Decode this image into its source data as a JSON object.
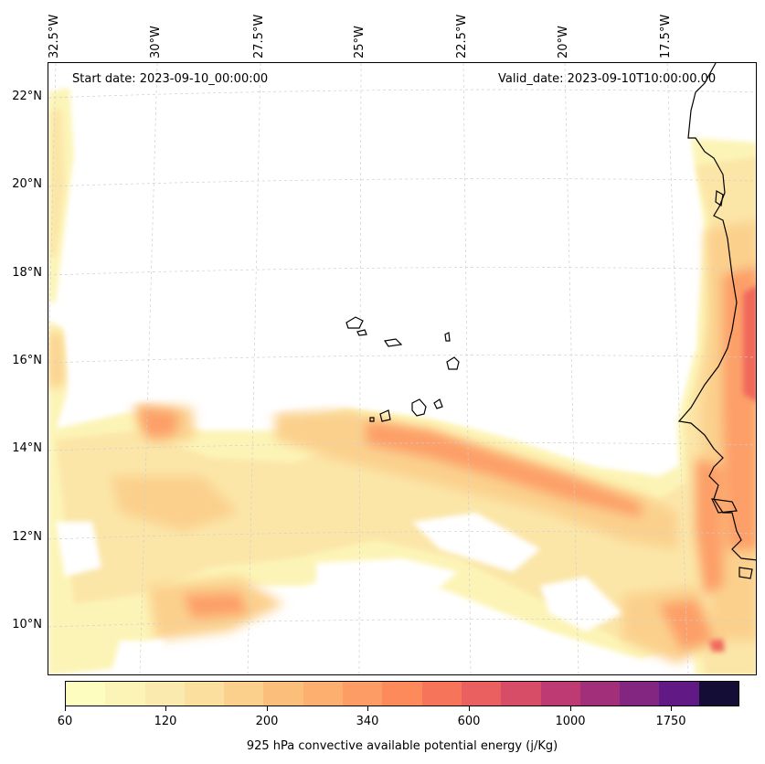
{
  "annotations": {
    "start_date": "Start date: 2023-09-10_00:00:00",
    "valid_date": "Valid_date: 2023-09-10T10:00:00.00"
  },
  "lon_labels": [
    "32.5°W",
    "30°W",
    "27.5°W",
    "25°W",
    "22.5°W",
    "20°W",
    "17.5°W"
  ],
  "lat_labels": [
    "22°N",
    "20°N",
    "18°N",
    "16°N",
    "14°N",
    "12°N",
    "10°N"
  ],
  "colorbar": {
    "label": "925 hPa convective available potential energy (j/Kg)",
    "tick_labels": [
      "60",
      "120",
      "200",
      "340",
      "600",
      "1000",
      "1750"
    ],
    "colors": [
      "#fcfdbf",
      "#fcf4b6",
      "#fbeaad",
      "#fbdf9f",
      "#fbd08d",
      "#fcbf7b",
      "#fcaf6f",
      "#fd9c65",
      "#fc8a5b",
      "#f6755a",
      "#ea5f5f",
      "#d74d68",
      "#bd3a72",
      "#a12f79",
      "#832681",
      "#601985",
      "#140e36"
    ],
    "color_scale_name": "magma-reversed"
  },
  "chart_data": {
    "type": "heatmap",
    "title": "",
    "variable": "925 hPa convective available potential energy (j/Kg)",
    "start_date": "2023-09-10_00:00:00",
    "valid_date": "2023-09-10T10:00:00.00",
    "lon_range": [
      -33.0,
      -15.0
    ],
    "lat_range": [
      8.9,
      22.8
    ],
    "levels": [
      60,
      120,
      200,
      340,
      600,
      1000,
      1750
    ],
    "gridlines": true
  }
}
